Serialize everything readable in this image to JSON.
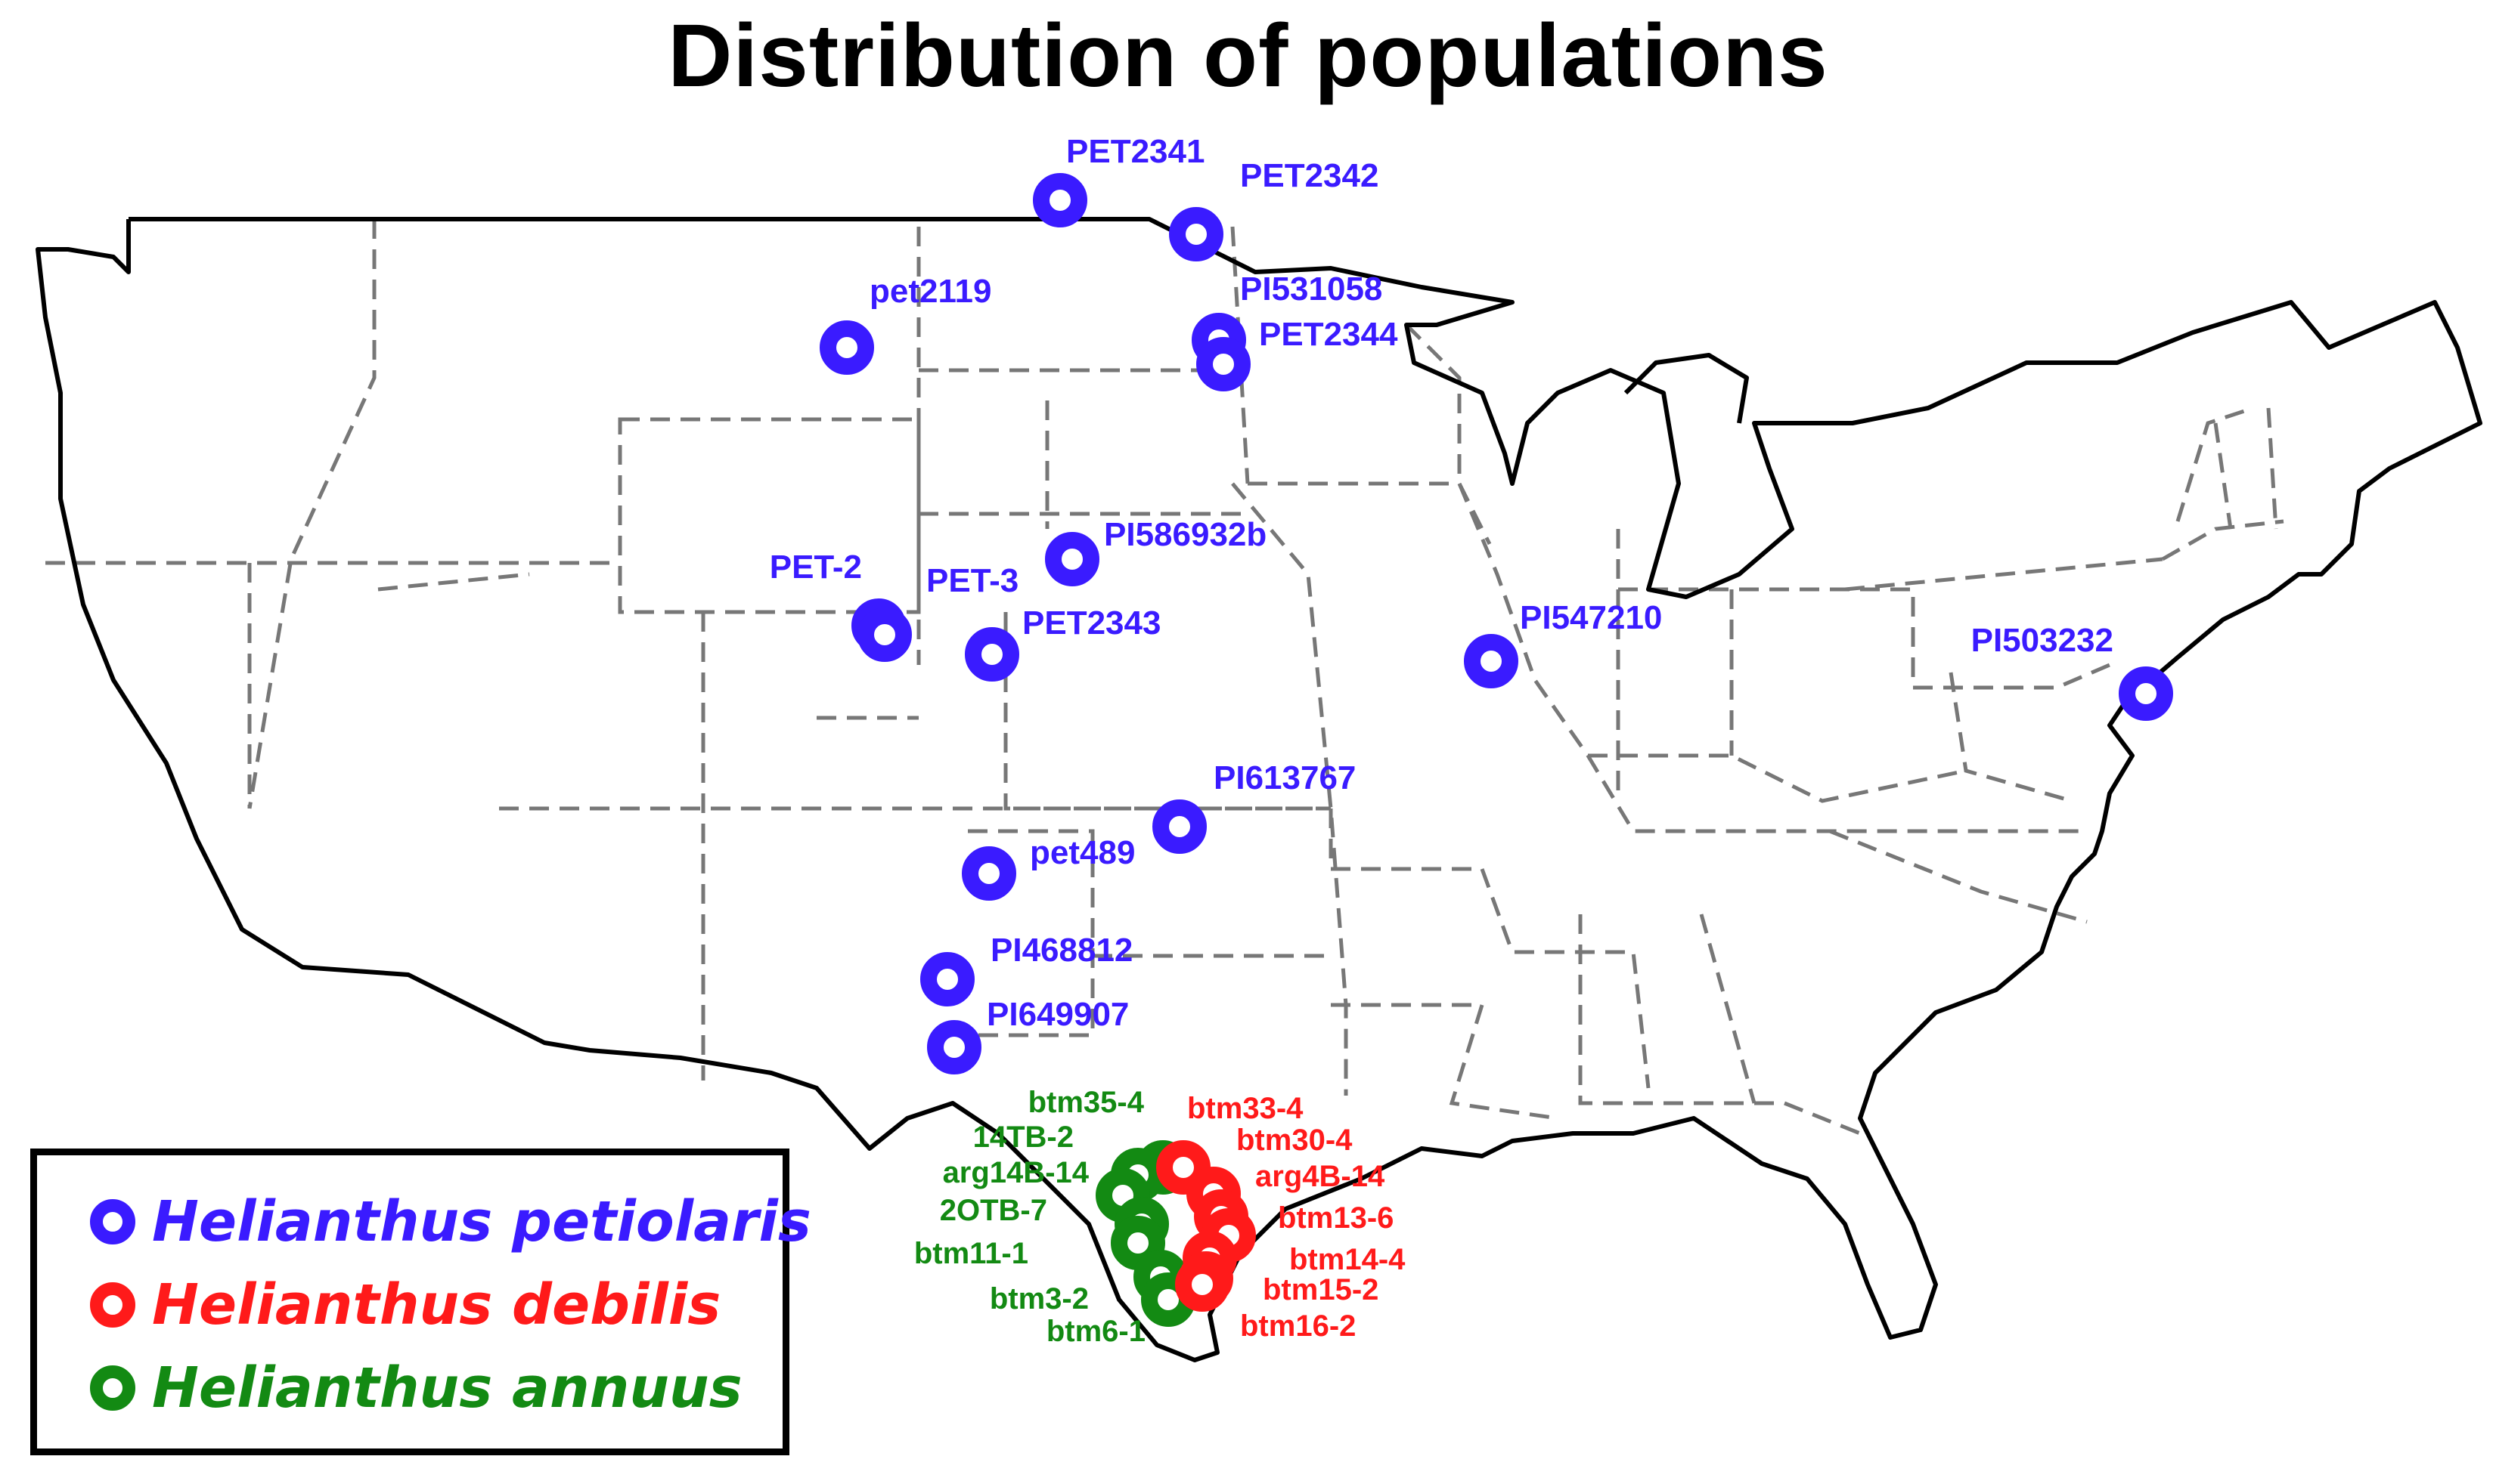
{
  "title": "Distribution of populations",
  "colors": {
    "petiolaris": "#3a1bff",
    "debilis": "#ff1a1a",
    "annuus": "#138a13"
  },
  "legend": [
    {
      "label": "Helianthus petiolaris",
      "color": "#3a1bff"
    },
    {
      "label": "Helianthus debilis",
      "color": "#ff1a1a"
    },
    {
      "label": "Helianthus annuus",
      "color": "#138a13"
    }
  ],
  "populations": {
    "petiolaris": [
      "PET2341",
      "PET2342",
      "pet2119",
      "PI531058",
      "PET2344",
      "PI586932b",
      "PET-2",
      "PET-3",
      "PET2343",
      "PI547210",
      "PI503232",
      "PI613767",
      "pet489",
      "PI468812",
      "PI649907"
    ],
    "annuus": [
      "btm35-4",
      "14TB-2",
      "arg14B-14",
      "2OTB-7",
      "btm11-1",
      "btm3-2",
      "btm6-1"
    ],
    "debilis": [
      "btm33-4",
      "btm30-4",
      "arg4B-14",
      "btm13-6",
      "btm14-4",
      "btm15-2",
      "btm16-2"
    ]
  }
}
